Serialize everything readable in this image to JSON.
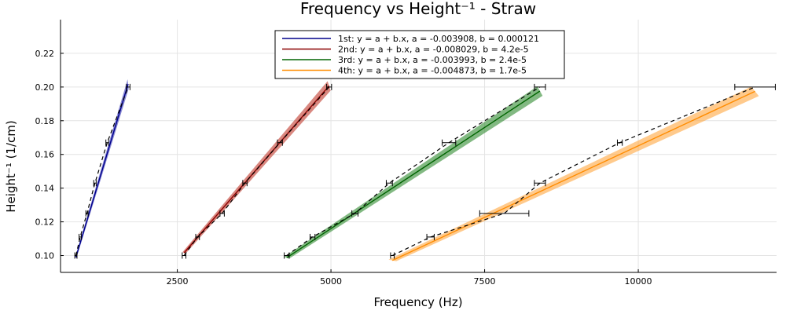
{
  "chart_data": {
    "type": "line",
    "title": "Frequency vs Height⁻¹ - Straw",
    "xlabel": "Frequency (Hz)",
    "ylabel": "Height⁻¹ (1/cm)",
    "xlim": [
      600,
      12250
    ],
    "ylim": [
      0.09,
      0.24
    ],
    "xticks": [
      2500,
      5000,
      7500,
      10000
    ],
    "xtick_labels": [
      "2500",
      "5000",
      "7500",
      "10000"
    ],
    "yticks": [
      0.1,
      0.12,
      0.14,
      0.16,
      0.18,
      0.2,
      0.22
    ],
    "ytick_labels": [
      "0.10",
      "0.12",
      "0.14",
      "0.16",
      "0.18",
      "0.20",
      "0.22"
    ],
    "grid": true,
    "legend_position": "top-center",
    "series": [
      {
        "name": "1st: y = a + b.x, a = -0.003908, b = 0.000121",
        "color": "#00008b",
        "band_color": "#3a3ab8",
        "x": [
          850,
          920,
          1030,
          1160,
          1360,
          1700
        ],
        "xerr": [
          18,
          18,
          18,
          20,
          22,
          30
        ],
        "y": [
          0.1,
          0.111,
          0.125,
          0.143,
          0.167,
          0.2
        ],
        "fit": {
          "a": -0.003908,
          "b": 0.000121,
          "x_range": [
            850,
            1700
          ]
        }
      },
      {
        "name": "2nd: y = a + b.x, a = -0.008029, b = 4.2e-5",
        "color": "#8b0000",
        "band_color": "#c0392b",
        "x": [
          2610,
          2830,
          3230,
          3600,
          4170,
          4970
        ],
        "xerr": [
          30,
          30,
          35,
          35,
          40,
          40
        ],
        "y": [
          0.1,
          0.111,
          0.125,
          0.143,
          0.167,
          0.2
        ],
        "fit": {
          "a": -0.008029,
          "b": 4.2e-05,
          "x_range": [
            2610,
            4970
          ]
        }
      },
      {
        "name": "3rd: y = a + b.x, a = -0.003993, b = 2.4e-5",
        "color": "#006400",
        "band_color": "#2e8b2e",
        "x": [
          4280,
          4700,
          5390,
          5950,
          6920,
          8400
        ],
        "xerr": [
          40,
          40,
          50,
          50,
          110,
          90
        ],
        "y": [
          0.1,
          0.111,
          0.125,
          0.143,
          0.167,
          0.2
        ],
        "fit": {
          "a": -0.003993,
          "b": 2.4e-05,
          "x_range": [
            4280,
            8400
          ]
        }
      },
      {
        "name": "4th: y = a + b.x, a = -0.004873, b = 1.7e-5",
        "color": "#ff8c00",
        "band_color": "#ffa640",
        "x": [
          6000,
          6620,
          7820,
          8400,
          9700,
          11900
        ],
        "xerr": [
          30,
          60,
          400,
          90,
          40,
          330
        ],
        "y": [
          0.1,
          0.111,
          0.125,
          0.143,
          0.167,
          0.2
        ],
        "fit": {
          "a": -0.004873,
          "b": 1.7e-05,
          "x_range": [
            6000,
            11900
          ]
        }
      }
    ]
  }
}
